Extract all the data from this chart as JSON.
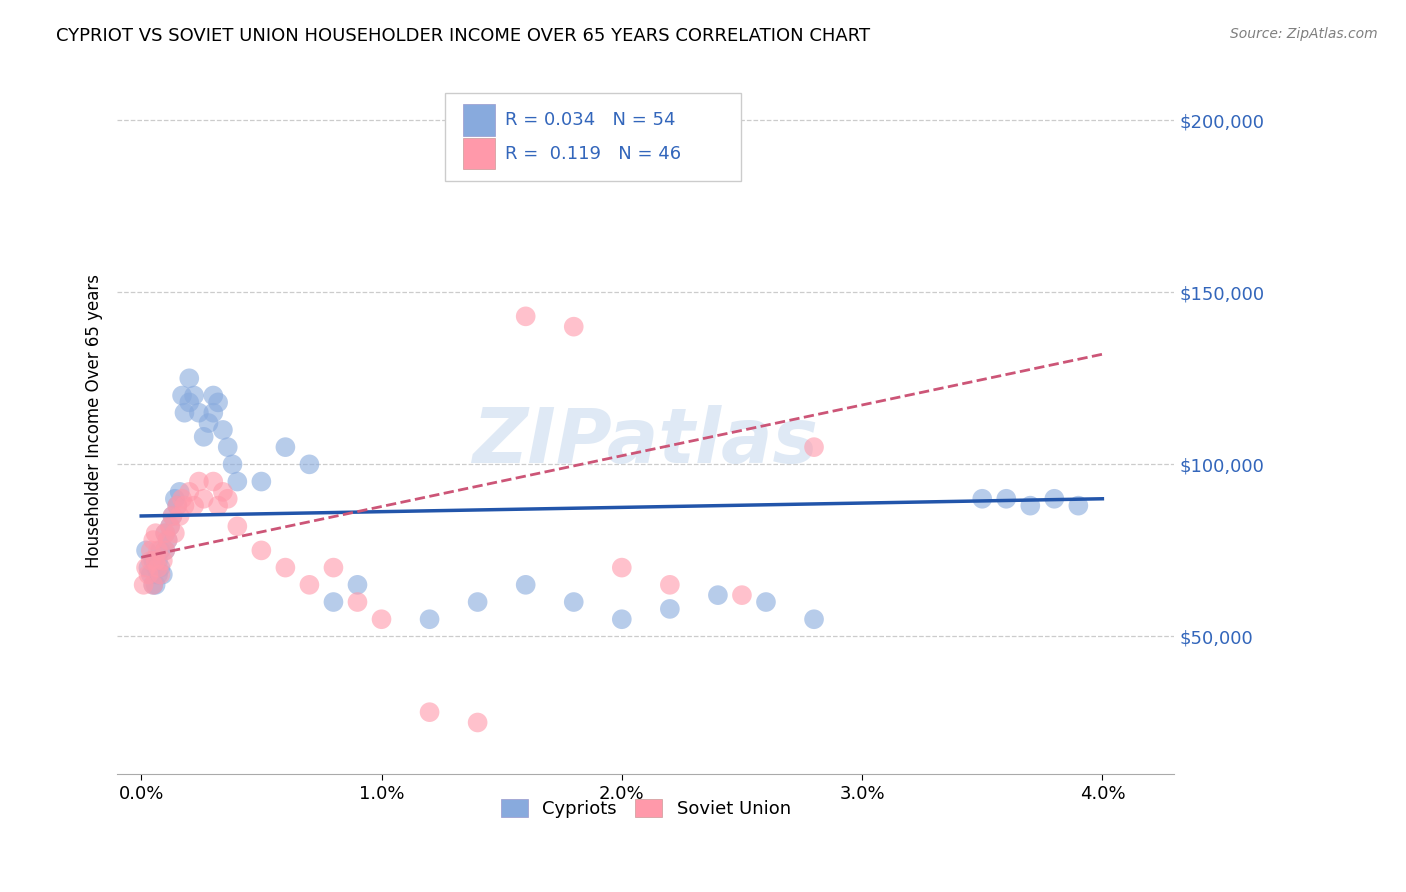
{
  "title": "CYPRIOT VS SOVIET UNION HOUSEHOLDER INCOME OVER 65 YEARS CORRELATION CHART",
  "source": "Source: ZipAtlas.com",
  "xlabel_ticks": [
    "0.0%",
    "1.0%",
    "2.0%",
    "3.0%",
    "4.0%"
  ],
  "xlabel_tick_vals": [
    0.0,
    0.01,
    0.02,
    0.03,
    0.04
  ],
  "ylabel": "Householder Income Over 65 years",
  "ylabel_ticks": [
    "$50,000",
    "$100,000",
    "$150,000",
    "$200,000"
  ],
  "ylabel_tick_vals": [
    50000,
    100000,
    150000,
    200000
  ],
  "xlim": [
    -0.001,
    0.043
  ],
  "ylim": [
    10000,
    215000
  ],
  "watermark": "ZIPatlas",
  "legend_r_cypriots": "0.034",
  "legend_n_cypriots": "54",
  "legend_r_soviet": "0.119",
  "legend_n_soviet": "46",
  "color_cypriots": "#88AADD",
  "color_soviet": "#FF99AA",
  "color_trend_cypriots": "#2255AA",
  "color_trend_soviet": "#CC5577",
  "cypriots_x": [
    0.0002,
    0.0003,
    0.0004,
    0.0005,
    0.0005,
    0.0006,
    0.0006,
    0.0007,
    0.0007,
    0.0008,
    0.0008,
    0.0009,
    0.001,
    0.001,
    0.0011,
    0.0012,
    0.0013,
    0.0014,
    0.0015,
    0.0016,
    0.0017,
    0.0018,
    0.002,
    0.002,
    0.0022,
    0.0024,
    0.0026,
    0.0028,
    0.003,
    0.003,
    0.0032,
    0.0034,
    0.0036,
    0.0038,
    0.004,
    0.005,
    0.006,
    0.007,
    0.008,
    0.009,
    0.012,
    0.014,
    0.016,
    0.018,
    0.02,
    0.022,
    0.024,
    0.026,
    0.028,
    0.035,
    0.036,
    0.037,
    0.038,
    0.039
  ],
  "cypriots_y": [
    75000,
    70000,
    68000,
    72000,
    65000,
    70000,
    65000,
    72000,
    68000,
    75000,
    70000,
    68000,
    80000,
    75000,
    78000,
    82000,
    85000,
    90000,
    88000,
    92000,
    120000,
    115000,
    125000,
    118000,
    120000,
    115000,
    108000,
    112000,
    120000,
    115000,
    118000,
    110000,
    105000,
    100000,
    95000,
    95000,
    105000,
    100000,
    60000,
    65000,
    55000,
    60000,
    65000,
    60000,
    55000,
    58000,
    62000,
    60000,
    55000,
    90000,
    90000,
    88000,
    90000,
    88000
  ],
  "soviet_x": [
    0.0001,
    0.0002,
    0.0003,
    0.0004,
    0.0004,
    0.0005,
    0.0005,
    0.0006,
    0.0006,
    0.0007,
    0.0007,
    0.0008,
    0.0009,
    0.001,
    0.001,
    0.0011,
    0.0012,
    0.0013,
    0.0014,
    0.0015,
    0.0016,
    0.0017,
    0.0018,
    0.002,
    0.0022,
    0.0024,
    0.0026,
    0.003,
    0.0032,
    0.0034,
    0.0036,
    0.004,
    0.005,
    0.006,
    0.007,
    0.008,
    0.009,
    0.01,
    0.012,
    0.014,
    0.016,
    0.018,
    0.02,
    0.022,
    0.025,
    0.028
  ],
  "soviet_y": [
    65000,
    70000,
    68000,
    72000,
    75000,
    78000,
    65000,
    80000,
    72000,
    75000,
    70000,
    68000,
    72000,
    75000,
    80000,
    78000,
    82000,
    85000,
    80000,
    88000,
    85000,
    90000,
    88000,
    92000,
    88000,
    95000,
    90000,
    95000,
    88000,
    92000,
    90000,
    82000,
    75000,
    70000,
    65000,
    70000,
    60000,
    55000,
    28000,
    25000,
    143000,
    140000,
    70000,
    65000,
    62000,
    105000
  ]
}
